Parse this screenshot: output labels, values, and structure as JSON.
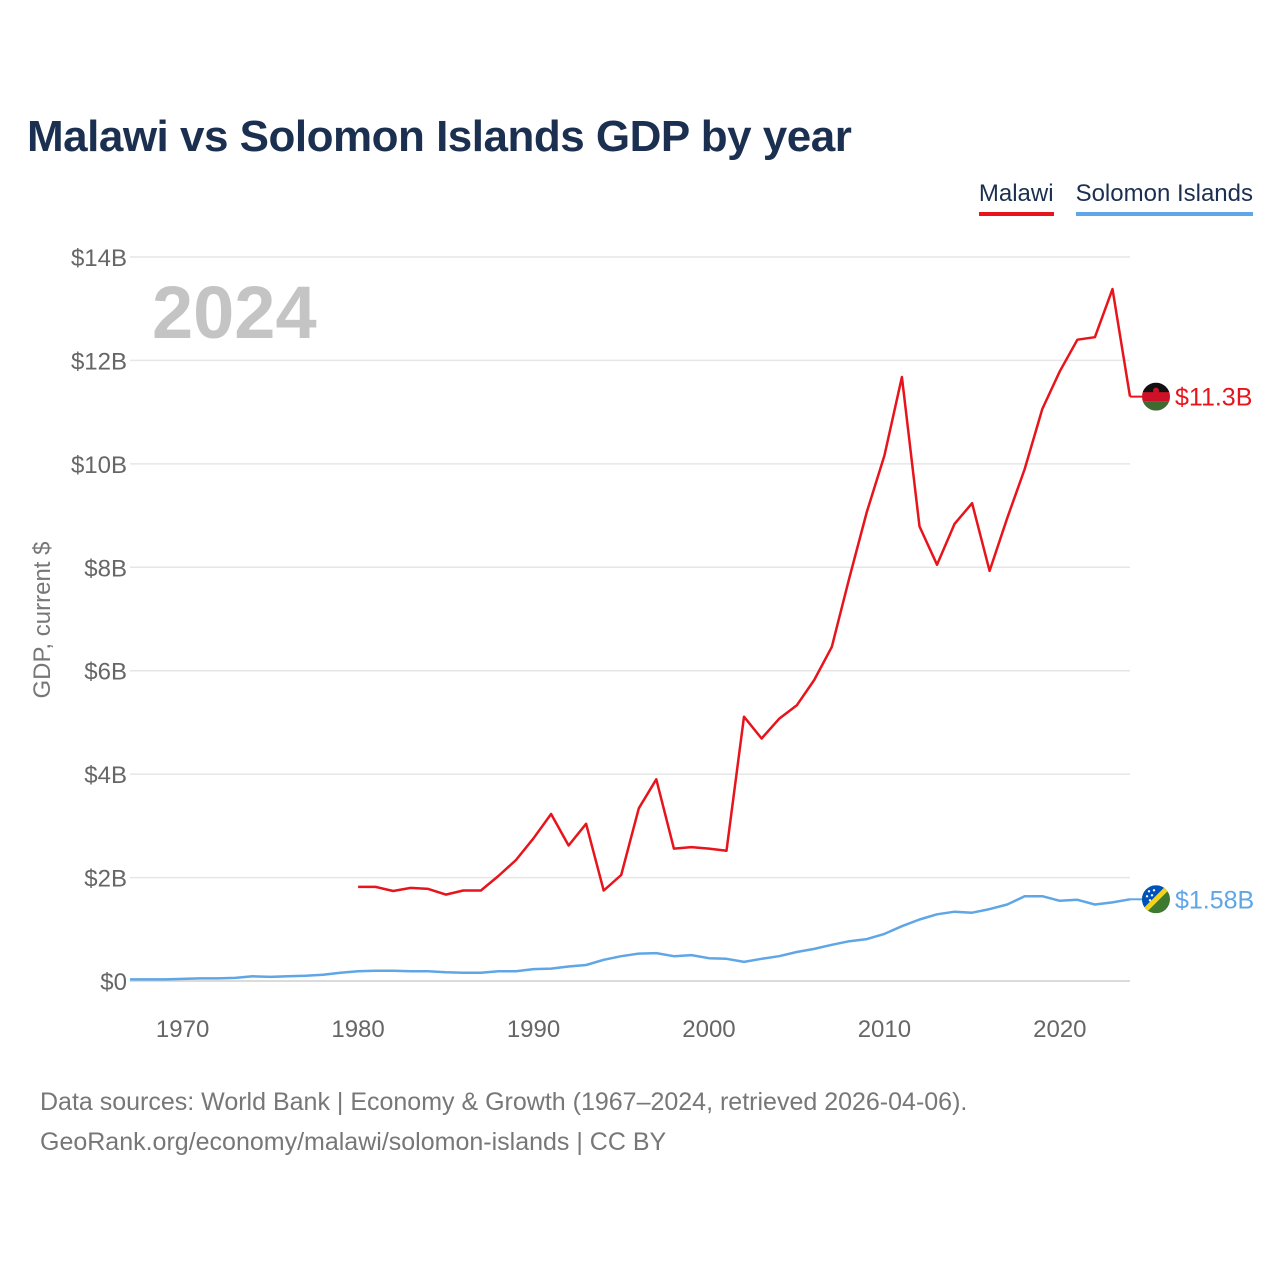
{
  "title": "Malawi vs Solomon Islands GDP by year",
  "year_overlay": "2024",
  "legend": [
    {
      "name": "Malawi",
      "color": "#e8141b"
    },
    {
      "name": "Solomon Islands",
      "color": "#5fa6e6"
    }
  ],
  "end_labels": {
    "malawi": "$11.3B",
    "solomon": "$1.58B"
  },
  "source_lines": [
    "Data sources: World Bank | Economy & Growth (1967–2024, retrieved 2026-04-06).",
    "GeoRank.org/economy/malawi/solomon-islands | CC BY"
  ],
  "chart_data": {
    "type": "line",
    "title": "Malawi vs Solomon Islands GDP by year",
    "ylabel": "GDP, current $",
    "xlabel": "",
    "xlim": [
      1967,
      2024
    ],
    "ylim": [
      0,
      14
    ],
    "y_unit": "billions USD",
    "x_ticks": [
      1970,
      1980,
      1990,
      2000,
      2010,
      2020
    ],
    "y_ticks": [
      {
        "value": 0,
        "label": "$0"
      },
      {
        "value": 2,
        "label": "$2B"
      },
      {
        "value": 4,
        "label": "$4B"
      },
      {
        "value": 6,
        "label": "$6B"
      },
      {
        "value": 8,
        "label": "$8B"
      },
      {
        "value": 10,
        "label": "$10B"
      },
      {
        "value": 12,
        "label": "$12B"
      },
      {
        "value": 14,
        "label": "$14B"
      }
    ],
    "grid": true,
    "series": [
      {
        "name": "Malawi",
        "color": "#e8141b",
        "x": [
          1980,
          1981,
          1982,
          1983,
          1984,
          1985,
          1986,
          1987,
          1988,
          1989,
          1990,
          1991,
          1992,
          1993,
          1994,
          1995,
          1996,
          1997,
          1998,
          1999,
          2000,
          2001,
          2002,
          2003,
          2004,
          2005,
          2006,
          2007,
          2008,
          2009,
          2010,
          2011,
          2012,
          2013,
          2014,
          2015,
          2016,
          2017,
          2018,
          2019,
          2020,
          2021,
          2022,
          2023,
          2024
        ],
        "values": [
          1.82,
          1.82,
          1.74,
          1.8,
          1.78,
          1.67,
          1.75,
          1.75,
          2.03,
          2.34,
          2.76,
          3.23,
          2.62,
          3.04,
          1.75,
          2.05,
          3.34,
          3.9,
          2.56,
          2.59,
          2.56,
          2.52,
          5.11,
          4.69,
          5.07,
          5.33,
          5.82,
          6.46,
          7.79,
          9.07,
          10.16,
          11.68,
          8.79,
          8.05,
          8.84,
          9.24,
          7.93,
          8.95,
          9.9,
          11.06,
          11.79,
          12.4,
          12.45,
          13.38,
          11.3
        ]
      },
      {
        "name": "Solomon Islands",
        "color": "#5fa6e6",
        "x": [
          1967,
          1968,
          1969,
          1970,
          1971,
          1972,
          1973,
          1974,
          1975,
          1976,
          1977,
          1978,
          1979,
          1980,
          1981,
          1982,
          1983,
          1984,
          1985,
          1986,
          1987,
          1988,
          1989,
          1990,
          1991,
          1992,
          1993,
          1994,
          1995,
          1996,
          1997,
          1998,
          1999,
          2000,
          2001,
          2002,
          2003,
          2004,
          2005,
          2006,
          2007,
          2008,
          2009,
          2010,
          2011,
          2012,
          2013,
          2014,
          2015,
          2016,
          2017,
          2018,
          2019,
          2020,
          2021,
          2022,
          2023,
          2024
        ],
        "values": [
          0.03,
          0.03,
          0.03,
          0.04,
          0.05,
          0.05,
          0.06,
          0.09,
          0.08,
          0.09,
          0.1,
          0.12,
          0.16,
          0.19,
          0.2,
          0.2,
          0.19,
          0.19,
          0.17,
          0.16,
          0.16,
          0.19,
          0.19,
          0.23,
          0.24,
          0.28,
          0.31,
          0.41,
          0.48,
          0.53,
          0.54,
          0.48,
          0.5,
          0.44,
          0.43,
          0.37,
          0.43,
          0.48,
          0.56,
          0.62,
          0.7,
          0.77,
          0.81,
          0.91,
          1.06,
          1.19,
          1.29,
          1.34,
          1.32,
          1.39,
          1.48,
          1.64,
          1.64,
          1.55,
          1.57,
          1.48,
          1.52,
          1.58
        ]
      }
    ]
  }
}
